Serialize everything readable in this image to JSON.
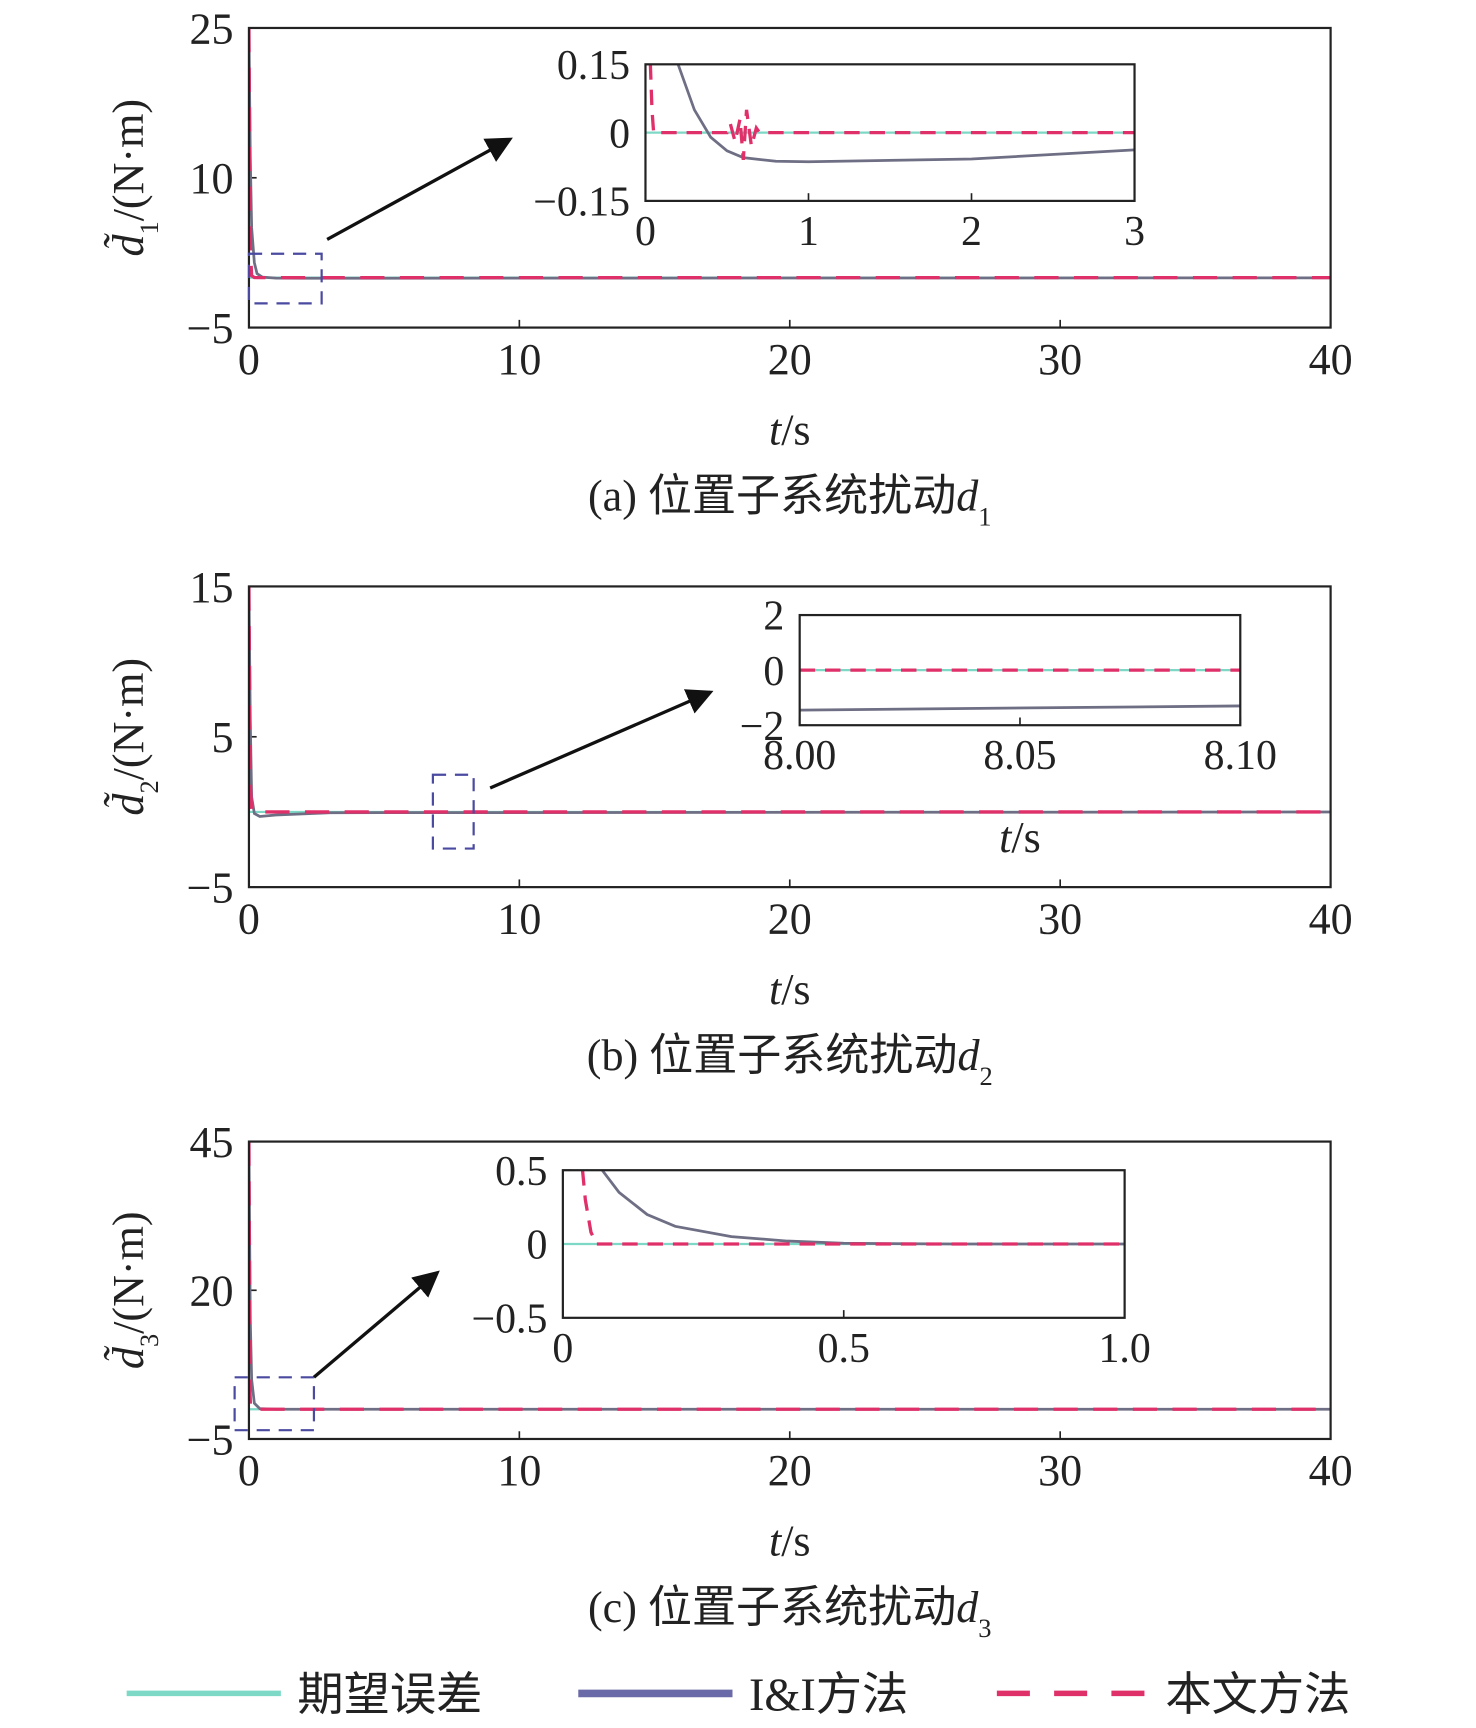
{
  "chart_data": [
    {
      "type": "line",
      "title": "(a) 位置子系统扰动",
      "title_var": "d",
      "title_sub": "1",
      "ylabel_var": "d̃",
      "ylabel_sub": "1",
      "ylabel_unit": "/(N·m)",
      "xlabel_var": "t",
      "xlabel_unit": "/s",
      "xlim": [
        0,
        40
      ],
      "ylim": [
        -5,
        25
      ],
      "xticks": [
        0,
        10,
        20,
        30,
        40
      ],
      "yticks": [
        {
          "value": -5,
          "label": "−5"
        },
        10,
        25
      ],
      "series": [
        {
          "name": "期望误差",
          "color": "#7dd9c6",
          "x": [
            0,
            40
          ],
          "values": [
            0,
            0
          ]
        },
        {
          "name": "I&I方法",
          "color": "#6e6e84",
          "x": [
            0,
            0.05,
            0.1,
            0.2,
            0.3,
            0.5,
            1,
            2,
            40
          ],
          "values": [
            25,
            12,
            5,
            1.5,
            0.4,
            0.05,
            -0.05,
            -0.06,
            -0.02
          ]
        },
        {
          "name": "本文方法",
          "color": "#e0306a",
          "x": [
            0,
            0.05,
            0.1,
            0.2,
            0.3,
            40
          ],
          "values": [
            25,
            3,
            0.2,
            0.01,
            0,
            0
          ]
        }
      ],
      "inset": {
        "xlim": [
          0,
          3
        ],
        "ylim": [
          -0.15,
          0.15
        ],
        "xticks": [
          0,
          1,
          2,
          3
        ],
        "yticks": [
          {
            "value": -0.15,
            "label": "−0.15"
          },
          0,
          0.15
        ],
        "series": [
          {
            "x": [
              0,
              3
            ],
            "values": [
              0,
              0
            ]
          },
          {
            "x": [
              0.2,
              0.3,
              0.4,
              0.5,
              0.6,
              0.8,
              1,
              2,
              3
            ],
            "values": [
              0.15,
              0.05,
              -0.01,
              -0.04,
              -0.055,
              -0.063,
              -0.064,
              -0.058,
              -0.038
            ]
          },
          {
            "x": [
              0.03,
              0.04,
              0.05,
              0.5,
              0.52,
              0.55,
              0.58,
              0.6,
              0.62,
              0.65,
              0.68,
              0.7,
              0.8,
              3
            ],
            "values": [
              0.15,
              0.05,
              0,
              0,
              0.02,
              -0.02,
              0.03,
              -0.06,
              0.05,
              -0.03,
              0.01,
              0,
              0,
              0
            ]
          }
        ]
      }
    },
    {
      "type": "line",
      "title": "(b) 位置子系统扰动",
      "title_var": "d",
      "title_sub": "2",
      "ylabel_var": "d̃",
      "ylabel_sub": "2",
      "ylabel_unit": "/(N·m)",
      "xlabel_var": "t",
      "xlabel_unit": "/s",
      "xlim": [
        0,
        40
      ],
      "ylim": [
        -5,
        15
      ],
      "xticks": [
        0,
        10,
        20,
        30,
        40
      ],
      "yticks": [
        {
          "value": -5,
          "label": "−5"
        },
        5,
        15
      ],
      "series": [
        {
          "name": "期望误差",
          "color": "#7dd9c6",
          "x": [
            0,
            40
          ],
          "values": [
            0,
            0
          ]
        },
        {
          "name": "I&I方法",
          "color": "#6e6e84",
          "x": [
            0,
            0.05,
            0.1,
            0.2,
            0.4,
            1,
            3,
            40
          ],
          "values": [
            15,
            6,
            1,
            -0.1,
            -0.3,
            -0.2,
            -0.05,
            0
          ]
        },
        {
          "name": "本文方法",
          "color": "#e0306a",
          "x": [
            0,
            0.05,
            0.1,
            0.3,
            40
          ],
          "values": [
            15,
            2,
            0.1,
            0,
            0
          ]
        }
      ],
      "inset": {
        "xlabel_var": "t",
        "xlabel_unit": "/s",
        "xlim": [
          8,
          8.1
        ],
        "ylim": [
          -2,
          2
        ],
        "xticks": [
          {
            "value": 8,
            "label": "8.00"
          },
          {
            "value": 8.05,
            "label": "8.05"
          },
          {
            "value": 8.1,
            "label": "8.10"
          }
        ],
        "yticks": [
          {
            "value": -2,
            "label": "−2"
          },
          0,
          2
        ],
        "series": [
          {
            "x": [
              8,
              8.1
            ],
            "values": [
              0,
              0
            ]
          },
          {
            "x": [
              8,
              8.1
            ],
            "values": [
              -1.45,
              -1.3
            ]
          },
          {
            "x": [
              8,
              8.1
            ],
            "values": [
              0,
              0
            ]
          }
        ]
      }
    },
    {
      "type": "line",
      "title": "(c) 位置子系统扰动",
      "title_var": "d",
      "title_sub": "3",
      "ylabel_var": "d̃",
      "ylabel_sub": "3",
      "ylabel_unit": "/(N·m)",
      "xlabel_var": "t",
      "xlabel_unit": "/s",
      "xlim": [
        0,
        40
      ],
      "ylim": [
        -5,
        45
      ],
      "xticks": [
        0,
        10,
        20,
        30,
        40
      ],
      "yticks": [
        {
          "value": -5,
          "label": "−5"
        },
        20,
        45
      ],
      "series": [
        {
          "name": "期望误差",
          "color": "#7dd9c6",
          "x": [
            0,
            40
          ],
          "values": [
            0,
            0
          ]
        },
        {
          "name": "I&I方法",
          "color": "#6e6e84",
          "x": [
            0,
            0.05,
            0.1,
            0.2,
            0.4,
            1,
            40
          ],
          "values": [
            45,
            15,
            5,
            1,
            0.1,
            0,
            0
          ]
        },
        {
          "name": "本文方法",
          "color": "#e0306a",
          "x": [
            0,
            0.04,
            0.06,
            40
          ],
          "values": [
            45,
            3,
            0,
            0
          ]
        }
      ],
      "inset": {
        "xlim": [
          0,
          1
        ],
        "ylim": [
          -0.5,
          0.5
        ],
        "xticks": [
          0,
          0.5,
          {
            "value": 1,
            "label": "1.0"
          }
        ],
        "yticks": [
          {
            "value": -0.5,
            "label": "−0.5"
          },
          0,
          0.5
        ],
        "series": [
          {
            "x": [
              0,
              1
            ],
            "values": [
              0,
              0
            ]
          },
          {
            "x": [
              0.07,
              0.1,
              0.15,
              0.2,
              0.3,
              0.4,
              0.5,
              0.7,
              1
            ],
            "values": [
              0.5,
              0.35,
              0.2,
              0.12,
              0.05,
              0.02,
              0.005,
              0,
              0
            ]
          },
          {
            "x": [
              0.035,
              0.04,
              0.05,
              0.06,
              1
            ],
            "values": [
              0.5,
              0.3,
              0.08,
              0,
              0
            ]
          }
        ]
      }
    }
  ]
}
